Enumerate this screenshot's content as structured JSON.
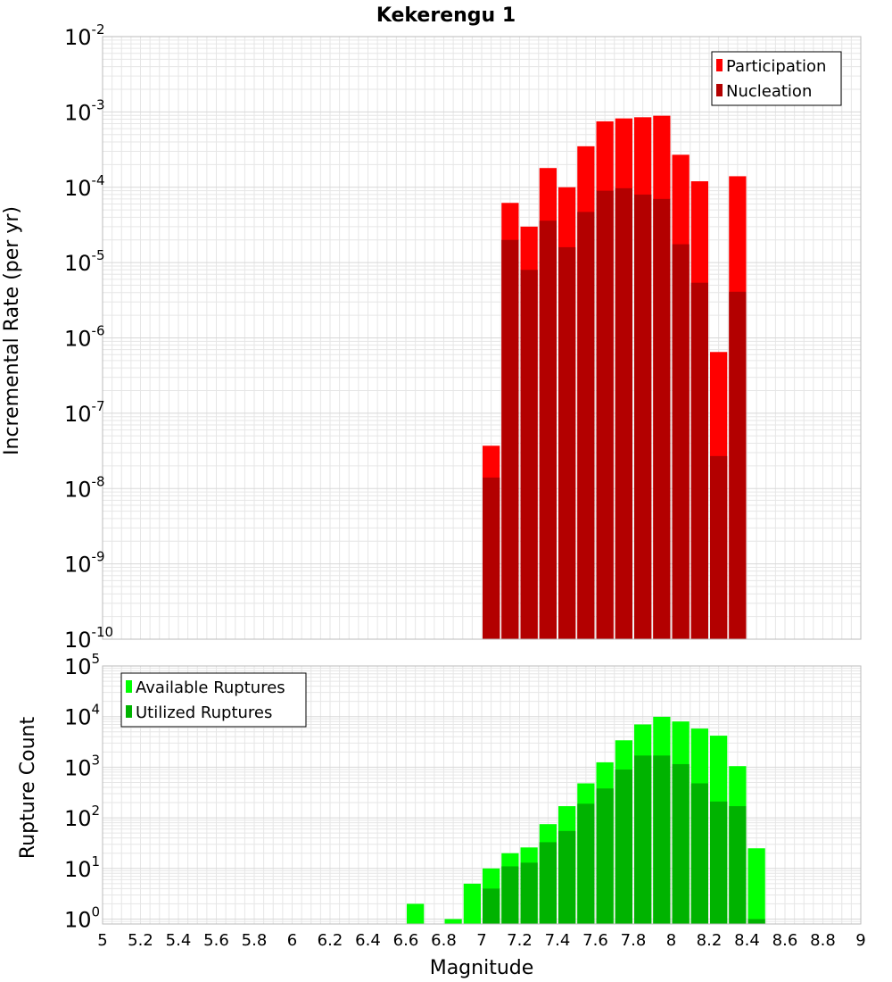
{
  "title": "Kekerengu 1",
  "xlabel": "Magnitude",
  "colors": {
    "participation": "#ff0000",
    "nucleation": "#b30000",
    "available": "#00ff00",
    "utilized": "#00b300",
    "grid": "#e6e6e6",
    "frame": "#bbbbbb"
  },
  "chart_data": [
    {
      "type": "bar",
      "panel": "top",
      "ylabel": "Incremental Rate (per yr)",
      "y_scale": "log",
      "ylim": [
        1e-10,
        0.01
      ],
      "xlim": [
        5,
        9
      ],
      "x_ticks": [
        "5",
        "5.2",
        "5.4",
        "5.6",
        "5.8",
        "6",
        "6.2",
        "6.4",
        "6.6",
        "6.8",
        "7",
        "7.2",
        "7.4",
        "7.6",
        "7.8",
        "8",
        "8.2",
        "8.4",
        "8.6",
        "8.8",
        "9"
      ],
      "y_tick_base": "10",
      "y_tick_exponents": [
        "-10",
        "-9",
        "-8",
        "-7",
        "-6",
        "-5",
        "-4",
        "-3",
        "-2"
      ],
      "legend_position": "top-right",
      "bin_width": 0.1,
      "x": [
        7.05,
        7.15,
        7.25,
        7.35,
        7.45,
        7.55,
        7.65,
        7.75,
        7.85,
        7.95,
        8.05,
        8.15,
        8.25,
        8.35
      ],
      "series": [
        {
          "name": "Participation",
          "values": [
            3.7e-08,
            6.2e-05,
            3e-05,
            0.00018,
            0.0001,
            0.00035,
            0.00075,
            0.00082,
            0.00085,
            0.00089,
            0.00027,
            0.00012,
            6.5e-07,
            0.00014
          ]
        },
        {
          "name": "Nucleation",
          "values": [
            1.4e-08,
            2e-05,
            8e-06,
            3.6e-05,
            1.6e-05,
            4.7e-05,
            9e-05,
            9.7e-05,
            8e-05,
            7e-05,
            1.75e-05,
            5.4e-06,
            2.7e-08,
            4.1e-06
          ]
        }
      ]
    },
    {
      "type": "bar",
      "panel": "bottom",
      "ylabel": "Rupture Count",
      "y_scale": "log",
      "ylim": [
        0.8,
        100000
      ],
      "xlim": [
        5,
        9
      ],
      "y_tick_base": "10",
      "y_tick_exponents": [
        "0",
        "1",
        "2",
        "3",
        "4",
        "5"
      ],
      "legend_position": "top-left",
      "bin_width": 0.1,
      "x": [
        6.65,
        6.85,
        6.95,
        7.05,
        7.15,
        7.25,
        7.35,
        7.45,
        7.55,
        7.65,
        7.75,
        7.85,
        7.95,
        8.05,
        8.15,
        8.25,
        8.35,
        8.45
      ],
      "series": [
        {
          "name": "Available Ruptures",
          "values": [
            2,
            1,
            5,
            10,
            20,
            26,
            75,
            170,
            480,
            1250,
            3400,
            7000,
            9900,
            8000,
            5800,
            4200,
            1050,
            25
          ]
        },
        {
          "name": "Utilized Ruptures",
          "values": [
            null,
            null,
            null,
            4,
            11,
            13,
            33,
            55,
            190,
            380,
            900,
            1700,
            1700,
            1150,
            480,
            210,
            170,
            1
          ]
        }
      ]
    }
  ]
}
